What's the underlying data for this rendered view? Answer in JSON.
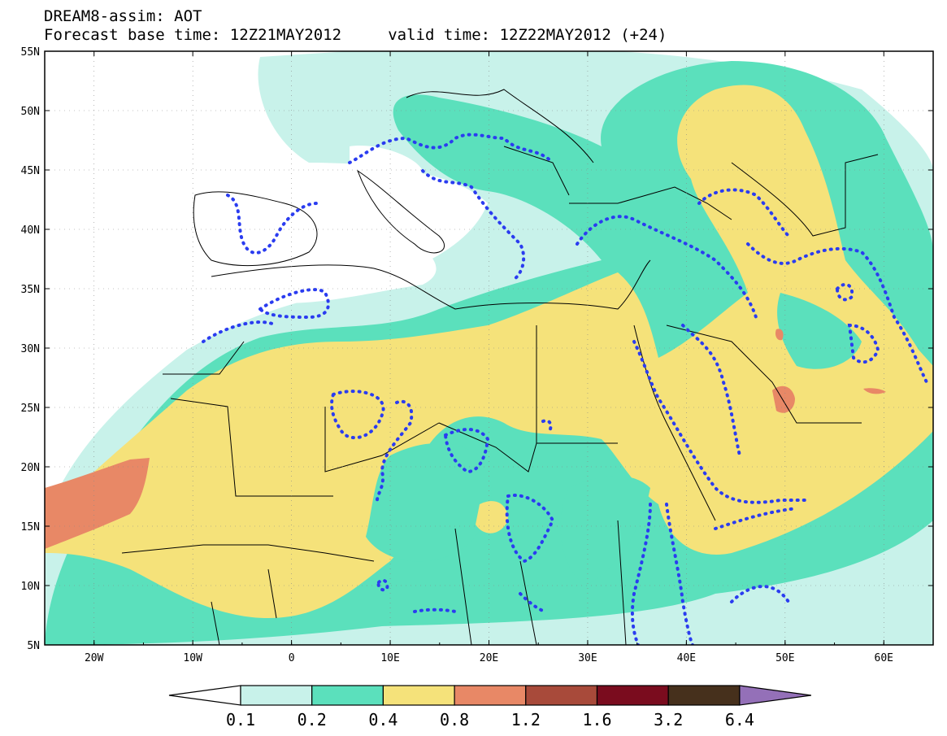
{
  "title_line1": "DREAM8-assim: AOT",
  "title_line2": "Forecast base time: 12Z21MAY2012     valid time: 12Z22MAY2012 (+24)",
  "axes": {
    "lat_labels": [
      "55N",
      "50N",
      "45N",
      "40N",
      "35N",
      "30N",
      "25N",
      "20N",
      "15N",
      "10N",
      "5N"
    ],
    "lon_labels": [
      "20W",
      "10W",
      "0",
      "10E",
      "20E",
      "30E",
      "40E",
      "50E",
      "60E"
    ],
    "lat_range": [
      5,
      55
    ],
    "lon_range": [
      -25,
      65
    ]
  },
  "colorbar": {
    "levels": [
      "0.1",
      "0.2",
      "0.4",
      "0.8",
      "1.2",
      "1.6",
      "3.2",
      "6.4"
    ],
    "colors": [
      "#c8f2ea",
      "#5be0bc",
      "#f5e27a",
      "#e88866",
      "#a84a3a",
      "#7a0c1e",
      "#46301c",
      "#9470b8"
    ],
    "under_color": "#ffffff",
    "over_color": "#9470b8"
  },
  "colors": {
    "aot_0_1": "#c8f2ea",
    "aot_0_2": "#5be0bc",
    "aot_0_4": "#f5e27a",
    "aot_0_8": "#e88866",
    "border": "#000000",
    "dotted_contour": "#2a3cf0"
  }
}
